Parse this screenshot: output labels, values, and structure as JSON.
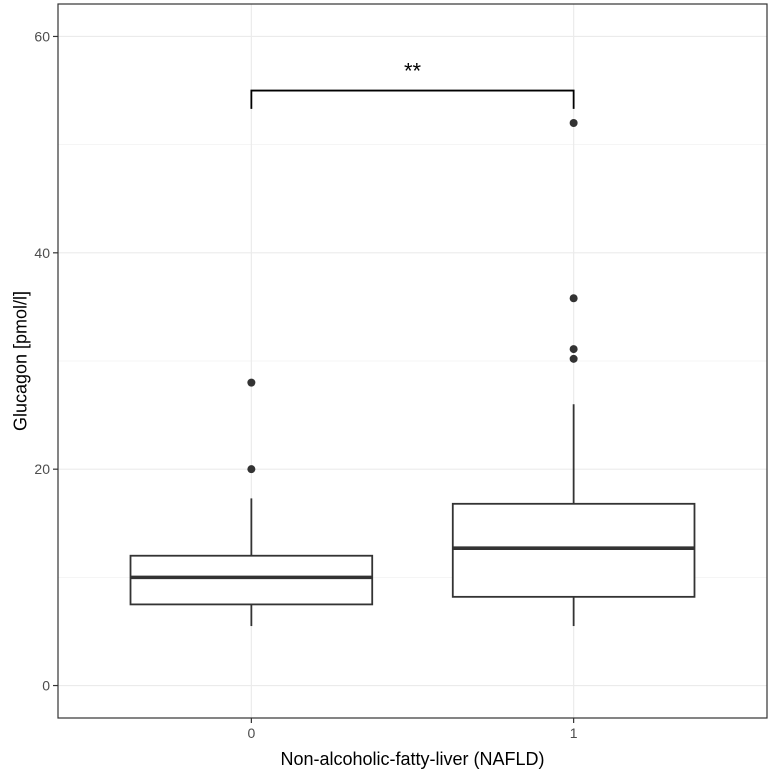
{
  "chart_data": {
    "type": "boxplot",
    "xlabel": "Non-alcoholic-fatty-liver (NAFLD)",
    "ylabel": "Glucagon [pmol/l]",
    "categories": [
      "0",
      "1"
    ],
    "ylim": [
      -3,
      63
    ],
    "yticks": [
      0,
      20,
      40,
      60
    ],
    "grid": true,
    "boxes": [
      {
        "category": "0",
        "whisker_low": 5.5,
        "q1": 7.5,
        "median": 10.0,
        "q3": 12.0,
        "whisker_high": 17.3,
        "outliers": [
          20.0,
          28.0
        ]
      },
      {
        "category": "1",
        "whisker_low": 5.5,
        "q1": 8.2,
        "median": 12.7,
        "q3": 16.8,
        "whisker_high": 26.0,
        "outliers": [
          30.2,
          31.1,
          35.8,
          52.0
        ]
      }
    ],
    "annotations": [
      {
        "type": "significance-bracket",
        "from": "0",
        "to": "1",
        "y": 55,
        "drop_to": 53.3,
        "label": "**"
      }
    ],
    "colors": {
      "box_stroke": "#333333",
      "grid": "#ebebeb",
      "panel_border": "#333333",
      "bracket": "#000000"
    }
  }
}
